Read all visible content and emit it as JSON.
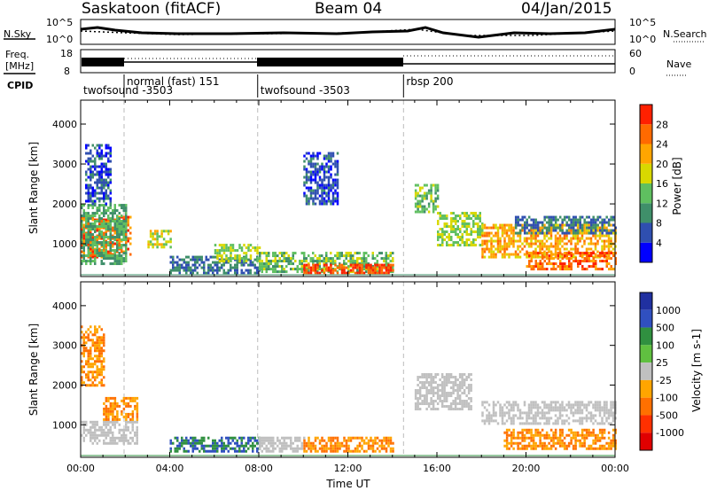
{
  "header": {
    "station": "Saskatoon (fitACF)",
    "beam": "Beam 04",
    "date": "04/Jan/2015"
  },
  "noise_panel": {
    "left_label": "N.Sky",
    "left_ticks": [
      "10^5",
      "10^0"
    ],
    "right_label": "N.Search",
    "right_ticks": [
      "10^5",
      "10^0"
    ]
  },
  "freq_panel": {
    "left_label_1": "Freq.",
    "left_label_2": "[MHz]",
    "left_ticks": [
      "18",
      "8"
    ],
    "right_label": "Nave",
    "right_ticks": [
      "60",
      "0"
    ]
  },
  "cpid": {
    "label": "CPID",
    "segments": [
      {
        "start_h": 0.0,
        "label": "twofsound -3503",
        "row": 2
      },
      {
        "start_h": 1.95,
        "label": "normal (fast) 151",
        "row": 1
      },
      {
        "start_h": 7.95,
        "label": "twofsound -3503",
        "row": 2
      },
      {
        "start_h": 14.5,
        "label": "rbsp 200",
        "row": 1
      }
    ]
  },
  "colors": {
    "power": [
      "#0000ff",
      "#2f4fb0",
      "#3f8f6a",
      "#5fbf60",
      "#d8d800",
      "#ffa500",
      "#ff6a00",
      "#ff2000"
    ],
    "velocity": [
      "#2030a0",
      "#3050c0",
      "#309040",
      "#60c040",
      "#c0c0c0",
      "#ffa500",
      "#ff7000",
      "#ff3000",
      "#e00000"
    ]
  },
  "chart_data": [
    {
      "type": "heatmap",
      "name": "power-panel",
      "ylabel": "Slant Range [km]",
      "y_ticks": [
        "1000",
        "2000",
        "3000",
        "4000"
      ],
      "y_range_km": [
        180,
        4600
      ],
      "x_range_h": [
        0,
        24
      ],
      "colorbar_label": "Power [dB]",
      "colorbar_ticks": [
        "4",
        "8",
        "12",
        "16",
        "20",
        "24",
        "28"
      ],
      "regions": [
        {
          "t": [
            0.0,
            2.2
          ],
          "r": [
            700,
            1700
          ],
          "v": 26
        },
        {
          "t": [
            0.0,
            2.0
          ],
          "r": [
            500,
            2000
          ],
          "v": 12
        },
        {
          "t": [
            0.2,
            1.3
          ],
          "r": [
            2000,
            3500
          ],
          "v": 6
        },
        {
          "t": [
            3.0,
            4.0
          ],
          "r": [
            900,
            1350
          ],
          "v": 18
        },
        {
          "t": [
            4.0,
            8.0
          ],
          "r": [
            250,
            700
          ],
          "v": 8
        },
        {
          "t": [
            6.0,
            8.0
          ],
          "r": [
            550,
            1000
          ],
          "v": 16
        },
        {
          "t": [
            8.0,
            14.0
          ],
          "r": [
            300,
            800
          ],
          "v": 14
        },
        {
          "t": [
            10.0,
            14.0
          ],
          "r": [
            250,
            500
          ],
          "v": 28
        },
        {
          "t": [
            10.0,
            11.5
          ],
          "r": [
            2000,
            3300
          ],
          "v": 6
        },
        {
          "t": [
            15.0,
            16.0
          ],
          "r": [
            1800,
            2500
          ],
          "v": 14
        },
        {
          "t": [
            16.0,
            18.0
          ],
          "r": [
            1000,
            1800
          ],
          "v": 16
        },
        {
          "t": [
            18.0,
            24.0
          ],
          "r": [
            700,
            1500
          ],
          "v": 22
        },
        {
          "t": [
            20.0,
            24.0
          ],
          "r": [
            400,
            800
          ],
          "v": 26
        },
        {
          "t": [
            19.5,
            24.0
          ],
          "r": [
            1300,
            1700
          ],
          "v": 8
        }
      ]
    },
    {
      "type": "heatmap",
      "name": "velocity-panel",
      "ylabel": "Slant Range [km]",
      "y_ticks": [
        "1000",
        "2000",
        "3000",
        "4000"
      ],
      "y_range_km": [
        180,
        4600
      ],
      "x_range_h": [
        0,
        24
      ],
      "xlabel": "Time UT",
      "x_ticks": [
        "00:00",
        "04:00",
        "08:00",
        "12:00",
        "16:00",
        "20:00",
        "00:00"
      ],
      "colorbar_label": "Velocity [m s-1]",
      "colorbar_ticks": [
        "1000",
        "500",
        "100",
        "25",
        "-25",
        "-100",
        "-500",
        "-1000"
      ],
      "regions": [
        {
          "t": [
            0.0,
            2.5
          ],
          "r": [
            500,
            1100
          ],
          "v": 0
        },
        {
          "t": [
            1.0,
            2.5
          ],
          "r": [
            1100,
            1700
          ],
          "v": -100
        },
        {
          "t": [
            0.0,
            1.0
          ],
          "r": [
            2000,
            3500
          ],
          "v": -100
        },
        {
          "t": [
            4.0,
            8.0
          ],
          "r": [
            300,
            700
          ],
          "v": 100
        },
        {
          "t": [
            8.0,
            10.0
          ],
          "r": [
            350,
            700
          ],
          "v": 0
        },
        {
          "t": [
            10.0,
            14.0
          ],
          "r": [
            300,
            700
          ],
          "v": -100
        },
        {
          "t": [
            15.0,
            17.5
          ],
          "r": [
            1400,
            2300
          ],
          "v": 0
        },
        {
          "t": [
            18.0,
            24.0
          ],
          "r": [
            1000,
            1600
          ],
          "v": 0
        },
        {
          "t": [
            19.0,
            24.0
          ],
          "r": [
            400,
            900
          ],
          "v": -100
        }
      ]
    }
  ]
}
